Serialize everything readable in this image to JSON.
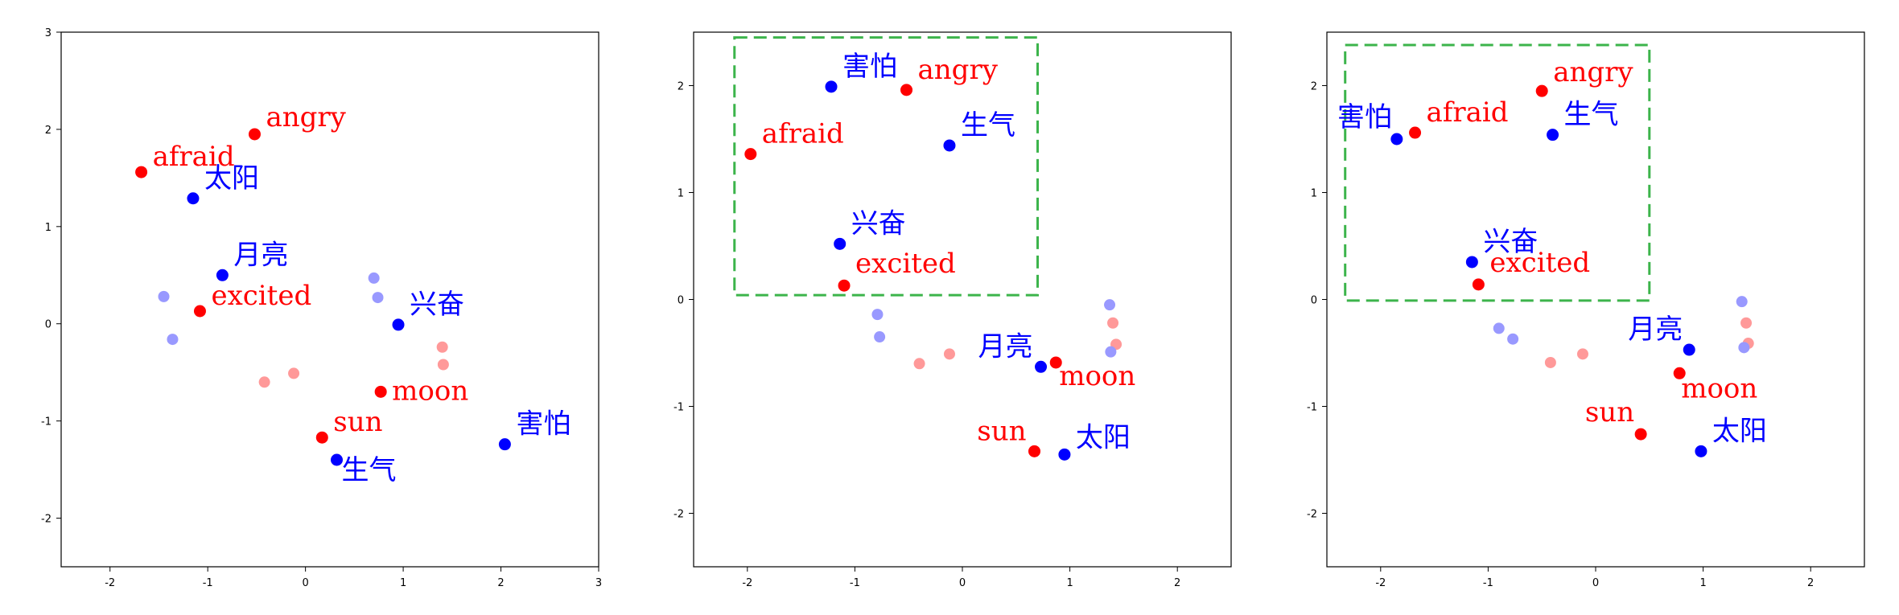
{
  "chart_data": [
    {
      "type": "scatter",
      "title": "",
      "xlabel": "",
      "ylabel": "",
      "xlim": [
        -2.5,
        3.0
      ],
      "ylim": [
        -2.5,
        3.0
      ],
      "xticks": [
        -2,
        -1,
        0,
        1,
        2,
        3
      ],
      "yticks": [
        -2,
        -1,
        0,
        1,
        2,
        3
      ],
      "grid": false,
      "highlight_box": null,
      "series": [
        {
          "name": "",
          "color": "#ff0000",
          "points": [
            {
              "label": "angry",
              "x": -0.52,
              "y": 1.95
            },
            {
              "label": "afraid",
              "x": -1.68,
              "y": 1.56
            },
            {
              "label": "excited",
              "x": -1.08,
              "y": 0.13
            },
            {
              "label": "moon",
              "x": 0.77,
              "y": -0.7
            },
            {
              "label": "sun",
              "x": 0.17,
              "y": -1.17
            }
          ]
        },
        {
          "name": "",
          "color": "#0000ff",
          "points": [
            {
              "label": "太阳",
              "x": -1.15,
              "y": 1.29
            },
            {
              "label": "月亮",
              "x": -0.85,
              "y": 0.5
            },
            {
              "label": "兴奋",
              "x": 0.95,
              "y": -0.01
            },
            {
              "label": "害怕",
              "x": 2.04,
              "y": -1.24
            },
            {
              "label": "生气",
              "x": 0.32,
              "y": -1.4
            }
          ]
        },
        {
          "name": "",
          "color": "#ff9999",
          "faded": true,
          "points": [
            {
              "x": -0.42,
              "y": -0.6
            },
            {
              "x": -0.12,
              "y": -0.51
            },
            {
              "x": 1.4,
              "y": -0.24
            },
            {
              "x": 1.41,
              "y": -0.42
            }
          ]
        },
        {
          "name": "",
          "color": "#9999ff",
          "faded": true,
          "points": [
            {
              "x": -1.45,
              "y": 0.28
            },
            {
              "x": -1.36,
              "y": -0.16
            },
            {
              "x": 0.7,
              "y": 0.47
            },
            {
              "x": 0.74,
              "y": 0.27
            }
          ]
        }
      ]
    },
    {
      "type": "scatter",
      "title": "",
      "xlabel": "",
      "ylabel": "",
      "xlim": [
        -2.5,
        2.5
      ],
      "ylim": [
        -2.5,
        2.5
      ],
      "xticks": [
        -2,
        -1,
        0,
        1,
        2
      ],
      "yticks": [
        -2,
        -1,
        0,
        1,
        2
      ],
      "grid": false,
      "highlight_box": {
        "x0": -2.12,
        "x1": 0.7,
        "y0": 0.04,
        "y1": 2.45,
        "color": "#3cb44b"
      },
      "series": [
        {
          "name": "",
          "color": "#ff0000",
          "points": [
            {
              "label": "angry",
              "x": -0.52,
              "y": 1.96
            },
            {
              "label": "afraid",
              "x": -1.97,
              "y": 1.36
            },
            {
              "label": "excited",
              "x": -1.1,
              "y": 0.13
            },
            {
              "label": "moon",
              "x": 0.87,
              "y": -0.59
            },
            {
              "label": "sun",
              "x": 0.67,
              "y": -1.42
            }
          ]
        },
        {
          "name": "",
          "color": "#0000ff",
          "points": [
            {
              "label": "害怕",
              "x": -1.22,
              "y": 1.99
            },
            {
              "label": "生气",
              "x": -0.12,
              "y": 1.44
            },
            {
              "label": "兴奋",
              "x": -1.14,
              "y": 0.52
            },
            {
              "label": "月亮",
              "x": 0.73,
              "y": -0.63
            },
            {
              "label": "太阳",
              "x": 0.95,
              "y": -1.45
            }
          ]
        },
        {
          "name": "",
          "color": "#ff9999",
          "faded": true,
          "points": [
            {
              "x": -0.4,
              "y": -0.6
            },
            {
              "x": -0.12,
              "y": -0.51
            },
            {
              "x": 1.4,
              "y": -0.22
            },
            {
              "x": 1.43,
              "y": -0.42
            }
          ]
        },
        {
          "name": "",
          "color": "#9999ff",
          "faded": true,
          "points": [
            {
              "x": -0.79,
              "y": -0.14
            },
            {
              "x": -0.77,
              "y": -0.35
            },
            {
              "x": 1.37,
              "y": -0.05
            },
            {
              "x": 1.38,
              "y": -0.49
            }
          ]
        }
      ]
    },
    {
      "type": "scatter",
      "title": "",
      "xlabel": "",
      "ylabel": "",
      "xlim": [
        -2.5,
        2.5
      ],
      "ylim": [
        -2.5,
        2.5
      ],
      "xticks": [
        -2,
        -1,
        0,
        1,
        2
      ],
      "yticks": [
        -2,
        -1,
        0,
        1,
        2
      ],
      "grid": false,
      "highlight_box": {
        "x0": -2.33,
        "x1": 0.5,
        "y0": -0.01,
        "y1": 2.38,
        "color": "#3cb44b"
      },
      "series": [
        {
          "name": "",
          "color": "#ff0000",
          "points": [
            {
              "label": "angry",
              "x": -0.5,
              "y": 1.95
            },
            {
              "label": "afraid",
              "x": -1.68,
              "y": 1.56
            },
            {
              "label": "excited",
              "x": -1.09,
              "y": 0.14
            },
            {
              "label": "moon",
              "x": 0.78,
              "y": -0.69
            },
            {
              "label": "sun",
              "x": 0.42,
              "y": -1.26
            }
          ]
        },
        {
          "name": "",
          "color": "#0000ff",
          "points": [
            {
              "label": "害怕",
              "x": -1.85,
              "y": 1.5
            },
            {
              "label": "生气",
              "x": -0.4,
              "y": 1.54
            },
            {
              "label": "兴奋",
              "x": -1.15,
              "y": 0.35
            },
            {
              "label": "月亮",
              "x": 0.87,
              "y": -0.47
            },
            {
              "label": "太阳",
              "x": 0.98,
              "y": -1.42
            }
          ]
        },
        {
          "name": "",
          "color": "#ff9999",
          "faded": true,
          "points": [
            {
              "x": -0.42,
              "y": -0.59
            },
            {
              "x": -0.12,
              "y": -0.51
            },
            {
              "x": 1.4,
              "y": -0.22
            },
            {
              "x": 1.42,
              "y": -0.41
            }
          ]
        },
        {
          "name": "",
          "color": "#9999ff",
          "faded": true,
          "points": [
            {
              "x": -0.9,
              "y": -0.27
            },
            {
              "x": -0.77,
              "y": -0.37
            },
            {
              "x": 1.36,
              "y": -0.02
            },
            {
              "x": 1.38,
              "y": -0.45
            }
          ]
        }
      ]
    }
  ]
}
